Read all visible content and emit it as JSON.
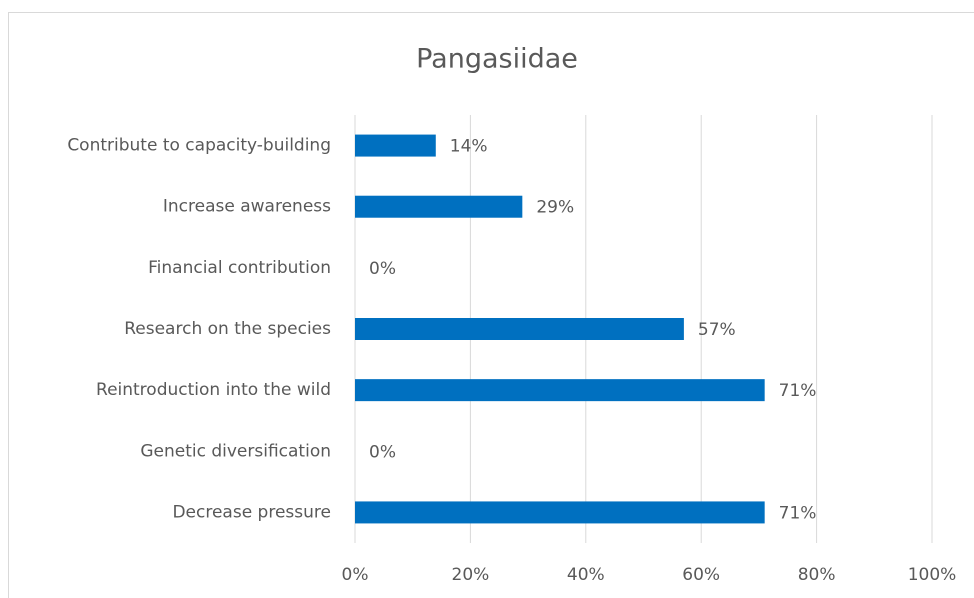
{
  "chart_data": {
    "type": "barh",
    "title": "Pangasiidae",
    "categories": [
      "Contribute to capacity-building",
      "Increase awareness",
      "Financial contribution",
      "Research on the species",
      "Reintroduction into the wild",
      "Genetic diversification",
      "Decrease pressure"
    ],
    "values": [
      14,
      29,
      0,
      57,
      71,
      0,
      71
    ],
    "value_labels": [
      "14%",
      "29%",
      "0%",
      "57%",
      "71%",
      "0%",
      "71%"
    ],
    "color": "#0070c0",
    "xlim": [
      0,
      100
    ],
    "xticks": [
      {
        "value": 0,
        "label": "0%"
      },
      {
        "value": 20,
        "label": "20%"
      },
      {
        "value": 40,
        "label": "40%"
      },
      {
        "value": 60,
        "label": "60%"
      },
      {
        "value": 80,
        "label": "80%"
      },
      {
        "value": 100,
        "label": "100%"
      }
    ],
    "grid": true
  }
}
